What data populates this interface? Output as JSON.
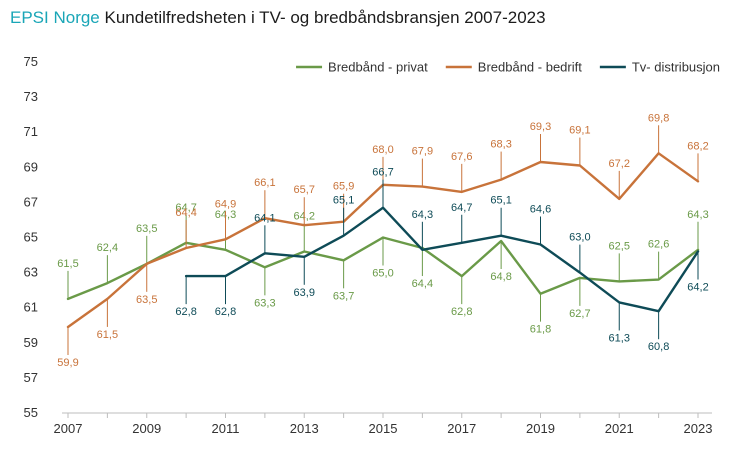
{
  "title": {
    "brand": "EPSI Norge",
    "text": "Kundetilfredsheten i TV- og bredbåndsbransjen 2007-2023"
  },
  "colors": {
    "privat": "#6a9a48",
    "bedrift": "#c8733a",
    "tv": "#0e4b57",
    "grid": "#e3e3e3",
    "axis": "#bdbdbd",
    "brand": "#1aa6b7"
  },
  "chart_data": {
    "type": "line",
    "title": "Kundetilfredsheten i TV- og bredbåndsbransjen 2007-2023",
    "ylim": [
      55,
      75
    ],
    "yticks": [
      55,
      57,
      59,
      61,
      63,
      65,
      67,
      69,
      71,
      73,
      75
    ],
    "xlim": [
      2007,
      2023
    ],
    "xticks": [
      2007,
      2009,
      2011,
      2013,
      2015,
      2017,
      2019,
      2021,
      2023
    ],
    "grid": false,
    "legend_position": "top-right",
    "series": [
      {
        "name": "Bredbånd - privat",
        "color_key": "privat",
        "x": [
          2007,
          2008,
          2009,
          2010,
          2011,
          2012,
          2013,
          2014,
          2015,
          2016,
          2017,
          2018,
          2019,
          2020,
          2021,
          2022,
          2023
        ],
        "values": [
          61.5,
          62.4,
          63.5,
          64.7,
          64.3,
          63.3,
          64.2,
          63.7,
          65.0,
          64.4,
          62.8,
          64.8,
          61.8,
          62.7,
          62.5,
          62.6,
          64.3
        ],
        "labels": [
          "61,5",
          "62,4",
          "63,5",
          "64,7",
          "64,3",
          "63,3",
          "64,2",
          "63,7",
          "65,0",
          "64,4",
          "62,8",
          "64,8",
          "61,8",
          "62,7",
          "62,5",
          "62,6",
          "64,3"
        ],
        "label_dir": [
          -1,
          -1,
          -1,
          -1,
          -1,
          1,
          -1,
          1,
          1,
          1,
          1,
          1,
          1,
          1,
          -1,
          -1,
          -1
        ]
      },
      {
        "name": "Bredbånd - bedrift",
        "color_key": "bedrift",
        "x": [
          2007,
          2008,
          2009,
          2010,
          2011,
          2012,
          2013,
          2014,
          2015,
          2016,
          2017,
          2018,
          2019,
          2020,
          2021,
          2022,
          2023
        ],
        "values": [
          59.9,
          61.5,
          63.5,
          64.4,
          64.9,
          66.1,
          65.7,
          65.9,
          68.0,
          67.9,
          67.6,
          68.3,
          69.3,
          69.1,
          67.2,
          69.8,
          68.2
        ],
        "labels": [
          "59,9",
          "61,5",
          "63,5",
          "64,4",
          "64,9",
          "66,1",
          "65,7",
          "65,9",
          "68,0",
          "67,9",
          "67,6",
          "68,3",
          "69,3",
          "69,1",
          "67,2",
          "69,8",
          "68,2"
        ],
        "label_dir": [
          1,
          1,
          1,
          -1,
          -1,
          -1,
          -1,
          -1,
          -1,
          -1,
          -1,
          -1,
          -1,
          -1,
          -1,
          -1,
          -1
        ]
      },
      {
        "name": "Tv- distribusjon",
        "color_key": "tv",
        "x": [
          2010,
          2011,
          2012,
          2013,
          2014,
          2015,
          2016,
          2017,
          2018,
          2019,
          2020,
          2021,
          2022,
          2023
        ],
        "values": [
          62.8,
          62.8,
          64.1,
          63.9,
          65.1,
          66.7,
          64.3,
          64.7,
          65.1,
          64.6,
          63.0,
          61.3,
          60.8,
          64.2
        ],
        "labels": [
          "62,8",
          "62,8",
          "64,1",
          "63,9",
          "65,1",
          "66,7",
          "64,3",
          "64,7",
          "65,1",
          "64,6",
          "63,0",
          "61,3",
          "60,8",
          "64,2"
        ],
        "label_dir": [
          1,
          1,
          -1,
          1,
          -1,
          -1,
          -1,
          -1,
          -1,
          -1,
          -1,
          1,
          1,
          1
        ]
      }
    ]
  }
}
